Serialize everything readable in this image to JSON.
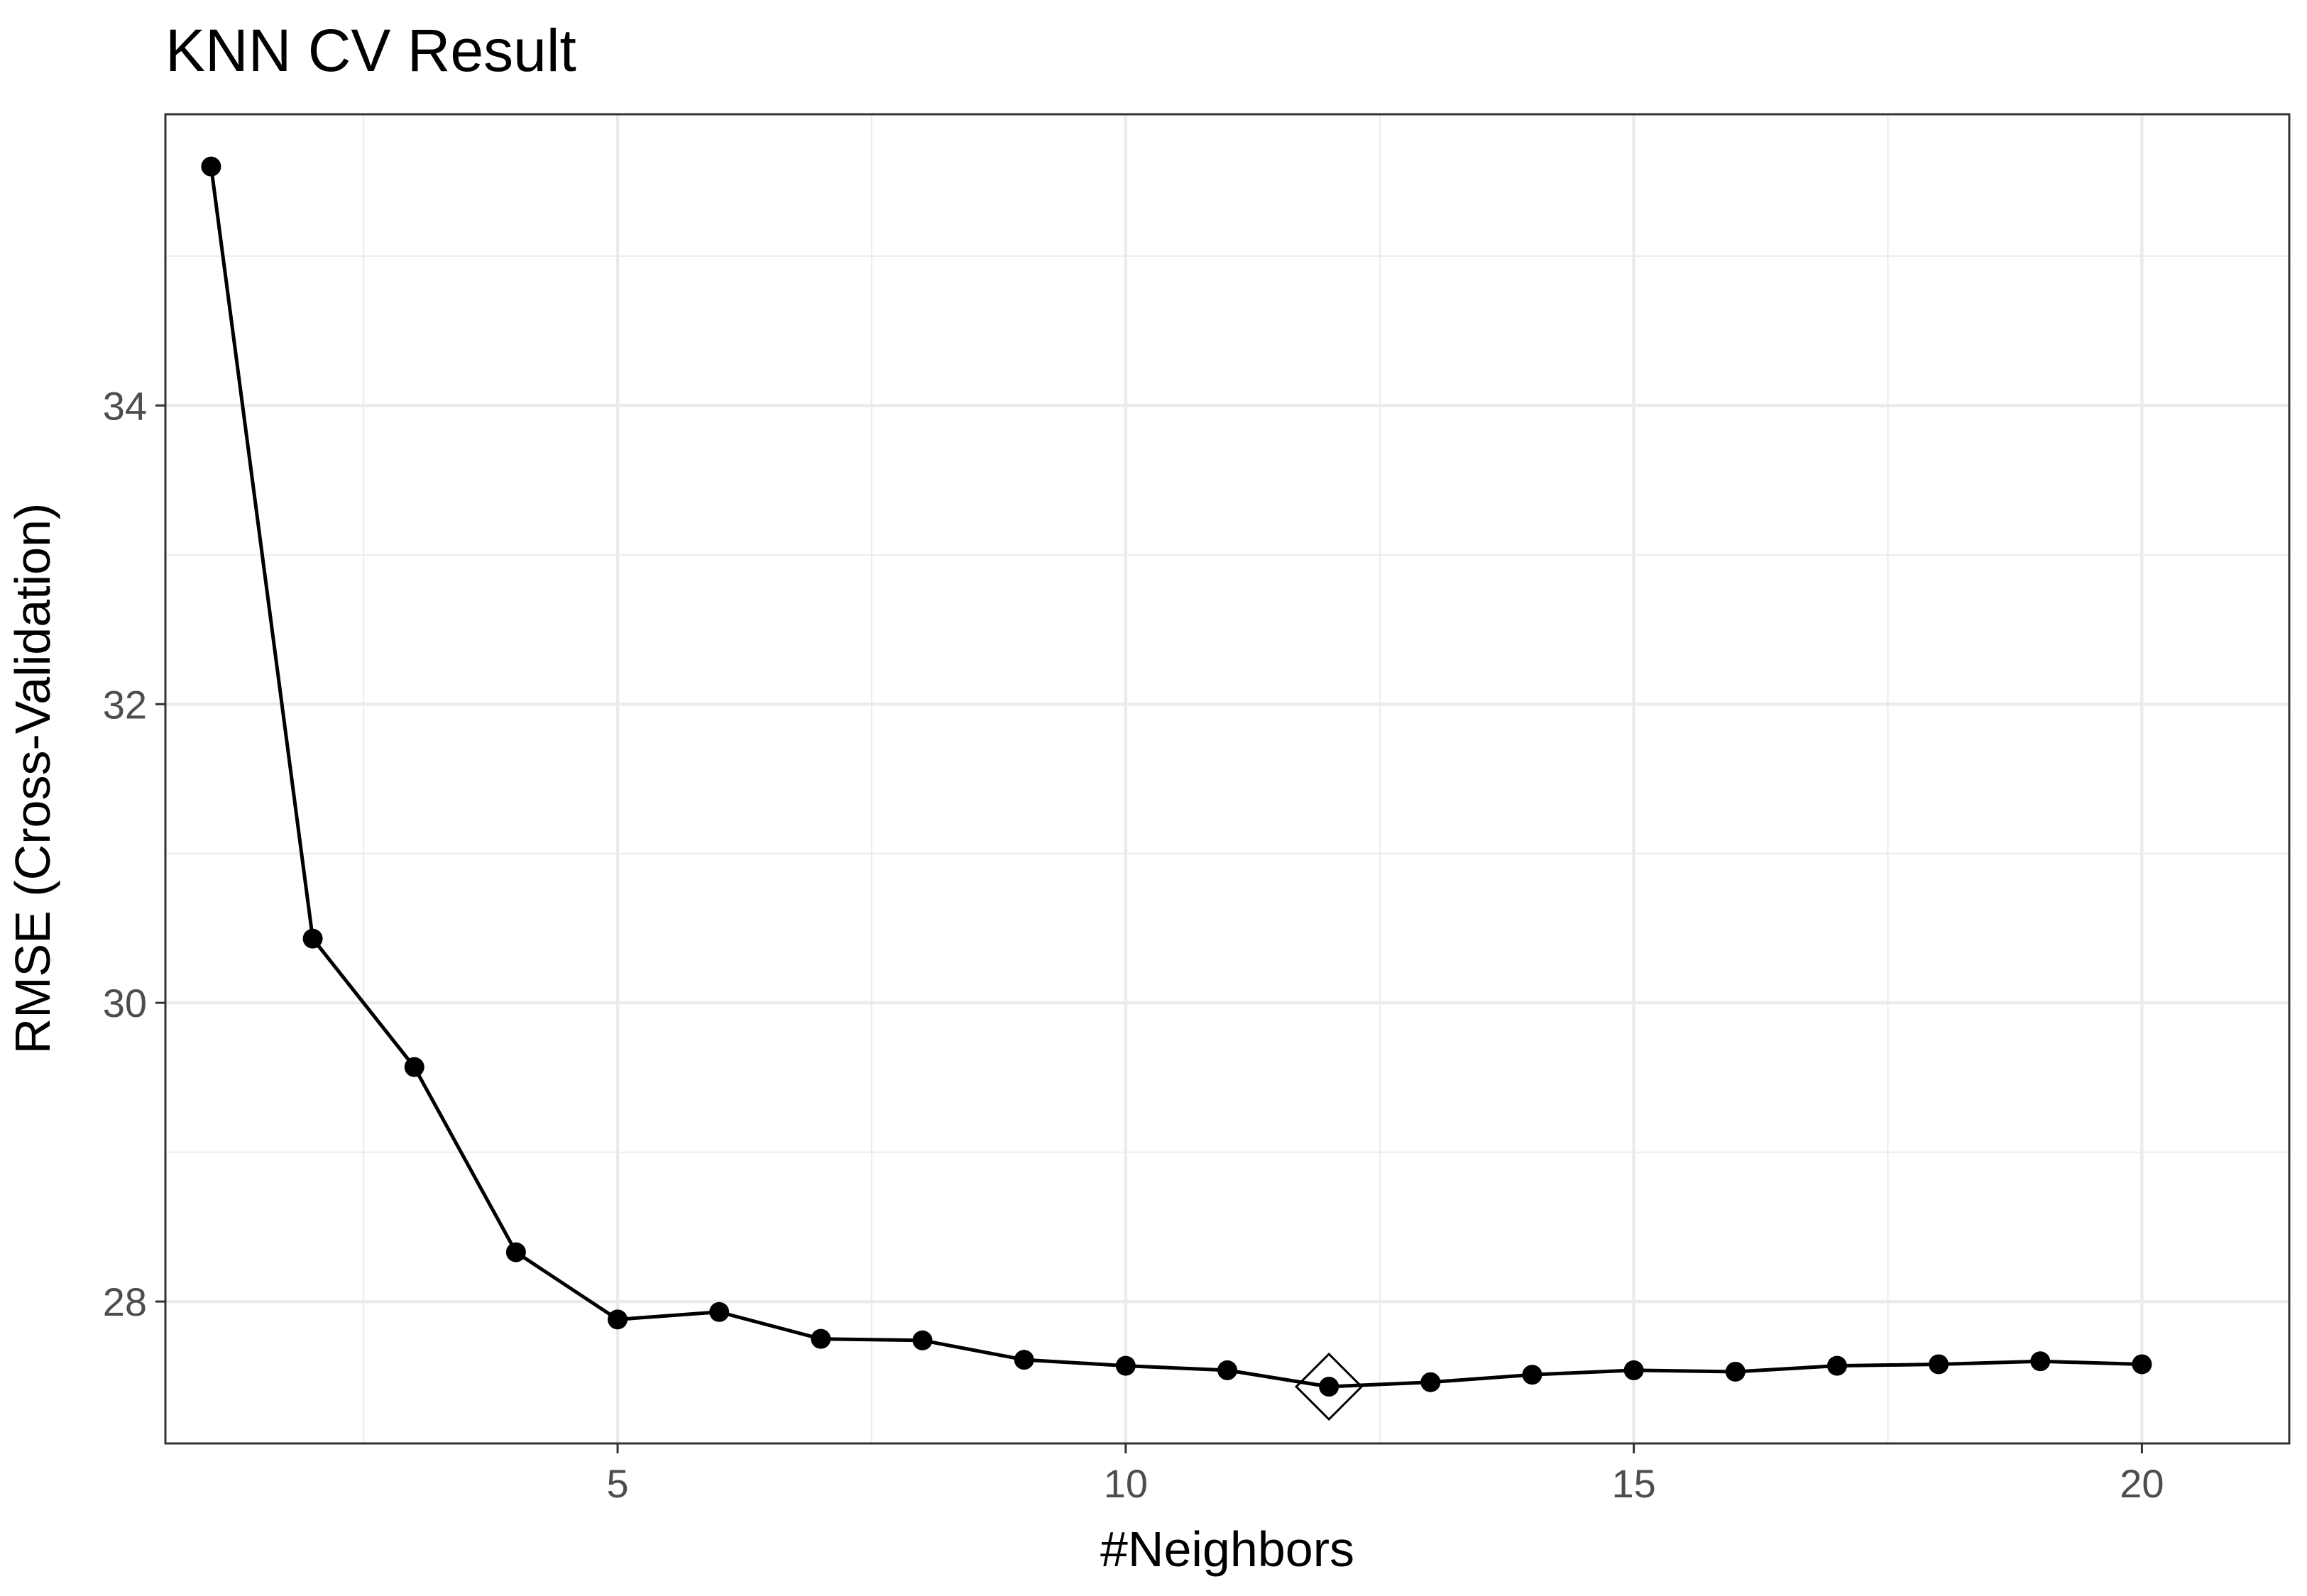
{
  "chart_data": {
    "type": "line",
    "title": "KNN CV Result",
    "xlabel": "#Neighbors",
    "ylabel": "RMSE (Cross-Validation)",
    "xlim": [
      0.55,
      21.45
    ],
    "ylim": [
      27.05,
      35.95
    ],
    "x_ticks": [
      5,
      10,
      15,
      20
    ],
    "y_ticks": [
      28,
      30,
      32,
      34
    ],
    "grid": true,
    "legend": "none",
    "series": [
      {
        "x": [
          1,
          2,
          3,
          4,
          5,
          6,
          7,
          8,
          9,
          10,
          11,
          12,
          13,
          14,
          15,
          16,
          17,
          18,
          19,
          20
        ],
        "values": [
          35.6,
          30.43,
          29.57,
          28.33,
          27.88,
          27.93,
          27.75,
          27.74,
          27.61,
          27.57,
          27.54,
          27.43,
          27.46,
          27.51,
          27.54,
          27.53,
          27.57,
          27.58,
          27.6,
          27.58
        ],
        "color": "#000000"
      }
    ],
    "best_point": {
      "x": 12,
      "y": 27.43,
      "marker": "diamond"
    }
  }
}
